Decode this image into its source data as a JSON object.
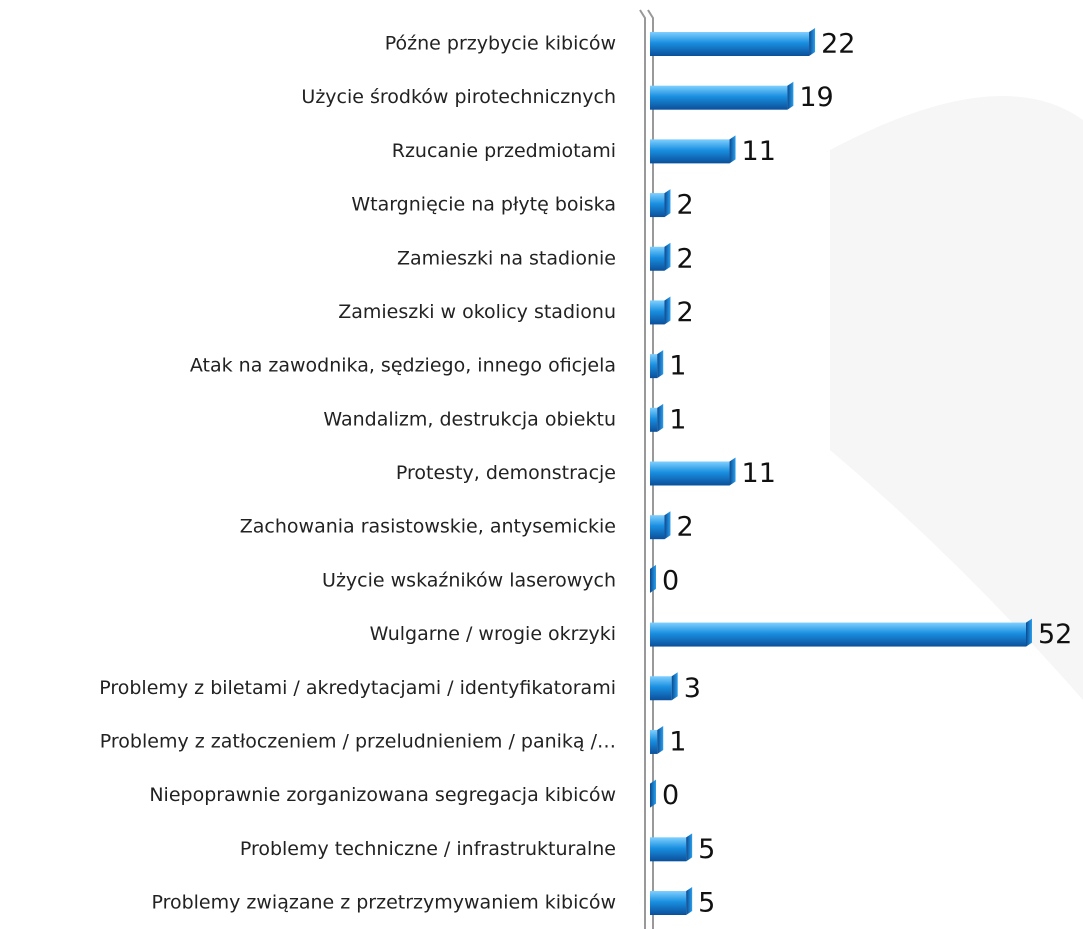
{
  "chart_data": {
    "type": "bar",
    "orientation": "horizontal",
    "color": "#1a8fe0",
    "categories": [
      "Późne przybycie kibiców",
      "Użycie środków pirotechnicznych",
      "Rzucanie przedmiotami",
      "Wtargnięcie na płytę boiska",
      "Zamieszki na stadionie",
      "Zamieszki w okolicy stadionu",
      "Atak na zawodnika, sędziego, innego oficjela",
      "Wandalizm, destrukcja obiektu",
      "Protesty, demonstracje",
      "Zachowania rasistowskie, antysemickie",
      "Użycie wskaźników laserowych",
      "Wulgarne / wrogie okrzyki",
      "Problemy z biletami / akredytacjami / identyfikatorami",
      "Problemy z zatłoczeniem / przeludnieniem / paniką /…",
      "Niepoprawnie zorganizowana segregacja kibiców",
      "Problemy techniczne / infrastrukturalne",
      "Problemy związane z przetrzymywaniem kibiców"
    ],
    "values": [
      22,
      19,
      11,
      2,
      2,
      2,
      1,
      1,
      11,
      2,
      0,
      52,
      3,
      1,
      0,
      5,
      5
    ]
  }
}
